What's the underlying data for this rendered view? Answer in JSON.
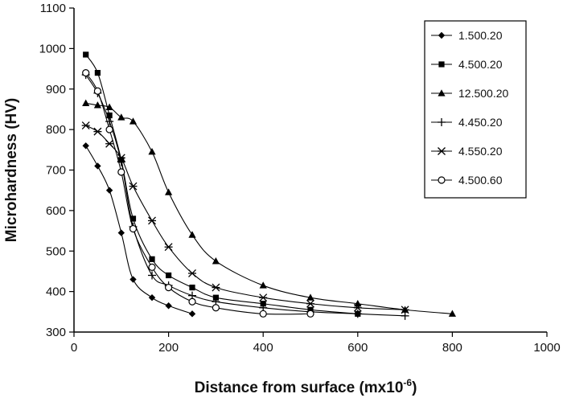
{
  "chart_data": {
    "type": "line",
    "title": "",
    "xlabel": "Distance from surface (mx10",
    "xlabel_sup": "-6",
    "xlabel_close": ")",
    "ylabel": "Microhardness (HV)",
    "xlim": [
      0,
      1000
    ],
    "ylim": [
      300,
      1100
    ],
    "xticks": [
      0,
      200,
      400,
      600,
      800,
      1000
    ],
    "yticks": [
      300,
      400,
      500,
      600,
      700,
      800,
      900,
      1000,
      1100
    ],
    "grid": false,
    "legend_position": "top-right",
    "series": [
      {
        "name": "1.500.20",
        "marker": "diamond",
        "x": [
          25,
          50,
          75,
          100,
          125,
          165,
          200,
          250
        ],
        "y": [
          760,
          710,
          650,
          545,
          430,
          385,
          365,
          345
        ]
      },
      {
        "name": "4.500.20",
        "marker": "square",
        "x": [
          25,
          50,
          75,
          100,
          125,
          165,
          200,
          250,
          300,
          400,
          500,
          600
        ],
        "y": [
          985,
          940,
          835,
          725,
          580,
          480,
          440,
          410,
          385,
          370,
          355,
          345
        ]
      },
      {
        "name": "12.500.20",
        "marker": "triangle",
        "x": [
          25,
          50,
          75,
          100,
          125,
          165,
          200,
          250,
          300,
          400,
          500,
          600,
          700,
          800
        ],
        "y": [
          865,
          860,
          855,
          830,
          820,
          745,
          645,
          540,
          475,
          415,
          385,
          370,
          355,
          345
        ]
      },
      {
        "name": "4.450.20",
        "marker": "plus",
        "x": [
          25,
          50,
          75,
          100,
          125,
          165,
          200,
          250,
          300,
          400,
          500,
          600,
          700
        ],
        "y": [
          935,
          890,
          820,
          720,
          560,
          440,
          415,
          390,
          375,
          360,
          350,
          345,
          340
        ]
      },
      {
        "name": "4.550.20",
        "marker": "asterisk",
        "x": [
          25,
          50,
          75,
          100,
          125,
          165,
          200,
          250,
          300,
          400,
          500,
          600,
          700
        ],
        "y": [
          810,
          795,
          765,
          730,
          660,
          575,
          510,
          445,
          410,
          385,
          370,
          360,
          355
        ]
      },
      {
        "name": "4.500.60",
        "marker": "circle",
        "x": [
          25,
          50,
          75,
          100,
          125,
          165,
          200,
          250,
          300,
          400,
          500
        ],
        "y": [
          940,
          895,
          800,
          695,
          555,
          460,
          410,
          375,
          360,
          345,
          345
        ]
      }
    ]
  }
}
